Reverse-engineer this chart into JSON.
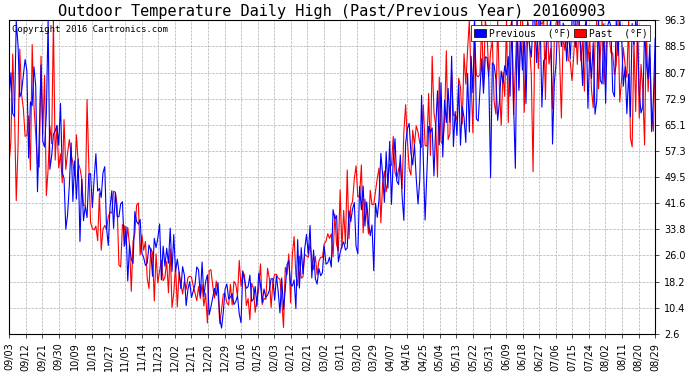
{
  "title": "Outdoor Temperature Daily High (Past/Previous Year) 20160903",
  "copyright": "Copyright 2016 Cartronics.com",
  "ylabel_ticks": [
    2.6,
    10.4,
    18.2,
    26.0,
    33.8,
    41.6,
    49.5,
    57.3,
    65.1,
    72.9,
    80.7,
    88.5,
    96.3
  ],
  "legend": [
    {
      "label": "Previous  (°F)",
      "color": "#0000ff"
    },
    {
      "label": "Past  (°F)",
      "color": "#ff0000"
    }
  ],
  "background_color": "#ffffff",
  "plot_bg_color": "#ffffff",
  "grid_color": "#b0b0b0",
  "title_fontsize": 11,
  "tick_fontsize": 7,
  "line_width": 0.8,
  "n_days": 366,
  "x_labels": [
    "09/03",
    "09/12",
    "09/21",
    "09/30",
    "10/09",
    "10/18",
    "10/27",
    "11/05",
    "11/14",
    "11/23",
    "12/02",
    "12/11",
    "12/20",
    "12/29",
    "01/16",
    "01/25",
    "02/03",
    "02/12",
    "02/21",
    "03/02",
    "03/11",
    "03/20",
    "03/29",
    "04/07",
    "04/16",
    "04/25",
    "05/04",
    "05/13",
    "05/22",
    "05/31",
    "06/09",
    "06/18",
    "06/27",
    "07/06",
    "07/15",
    "07/24",
    "08/02",
    "08/11",
    "08/20",
    "08/29"
  ]
}
